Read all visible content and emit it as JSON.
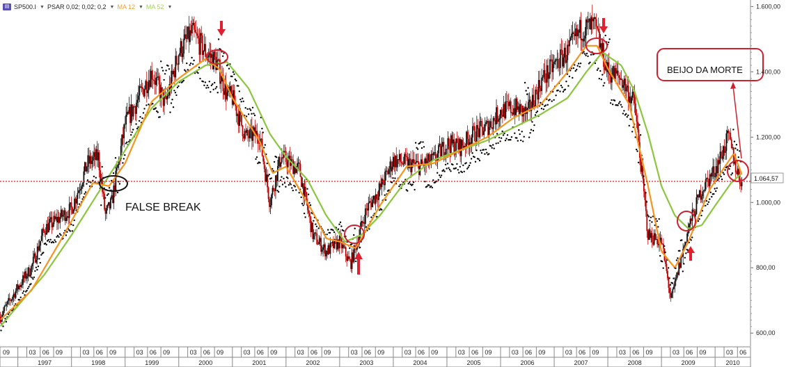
{
  "legend": {
    "symbol": "SP500.I",
    "psar": "PSAR 0,02; 0,02; 0,2",
    "ma12": "MA 12",
    "ma52": "MA 52",
    "colors": {
      "ma12": "#f7941d",
      "ma52": "#8cc63f",
      "psar": "#000000",
      "up": "#111111",
      "down": "#c00000"
    }
  },
  "annotations": {
    "false_break": "FALSE BREAK",
    "beijo": "BEIJO DA MORTE",
    "last_price": "1.064,57"
  },
  "chart_data": {
    "type": "line",
    "title": "",
    "xlabel": "",
    "ylabel": "",
    "ylim": [
      560,
      1620
    ],
    "xlim": [
      1996.667,
      2010.66
    ],
    "y_ticks": [
      "600,00",
      "800,00",
      "1.000,00",
      "1.200,00",
      "1.400,00",
      "1.600,00"
    ],
    "y_tick_values": [
      600,
      800,
      1000,
      1200,
      1400,
      1600
    ],
    "years": [
      "1997",
      "1998",
      "1999",
      "2000",
      "2001",
      "2002",
      "2003",
      "2004",
      "2005",
      "2006",
      "2007",
      "2008",
      "2009",
      "2010"
    ],
    "month_ticks": [
      "09",
      "03",
      "06",
      "09"
    ],
    "reference_line": 1064.57,
    "grid": false,
    "legend_position": "top-left",
    "price": {
      "x": [
        1996.67,
        1997.0,
        1997.25,
        1997.5,
        1997.75,
        1998.0,
        1998.3,
        1998.5,
        1998.63,
        1998.75,
        1999.0,
        1999.25,
        1999.5,
        1999.75,
        2000.0,
        2000.25,
        2000.5,
        2000.7,
        2000.9,
        2001.0,
        2001.25,
        2001.5,
        2001.7,
        2001.9,
        2002.0,
        2002.25,
        2002.5,
        2002.75,
        2003.0,
        2003.2,
        2003.5,
        2003.75,
        2004.0,
        2004.25,
        2004.5,
        2004.75,
        2005.0,
        2005.25,
        2005.5,
        2005.75,
        2006.0,
        2006.25,
        2006.5,
        2006.75,
        2007.0,
        2007.25,
        2007.5,
        2007.75,
        2008.0,
        2008.25,
        2008.5,
        2008.75,
        2009.0,
        2009.18,
        2009.5,
        2009.75,
        2010.0,
        2010.25,
        2010.4,
        2010.5
      ],
      "y": [
        650,
        740,
        800,
        920,
        950,
        980,
        1120,
        1140,
        960,
        1000,
        1240,
        1320,
        1400,
        1300,
        1460,
        1520,
        1460,
        1430,
        1330,
        1320,
        1200,
        1210,
        1000,
        1140,
        1130,
        1100,
        900,
        850,
        880,
        810,
        980,
        1040,
        1130,
        1120,
        1110,
        1130,
        1180,
        1170,
        1210,
        1230,
        1280,
        1290,
        1270,
        1370,
        1420,
        1460,
        1530,
        1540,
        1400,
        1380,
        1300,
        900,
        880,
        700,
        920,
        1040,
        1100,
        1200,
        1100,
        1060
      ]
    },
    "series": [
      {
        "name": "MA 12",
        "x": [
          1996.67,
          1997.25,
          1997.75,
          1998.4,
          1998.7,
          1999.0,
          1999.5,
          2000.0,
          2000.5,
          2000.75,
          2001.0,
          2001.5,
          2001.75,
          2002.0,
          2002.5,
          2002.75,
          2003.0,
          2003.3,
          2003.75,
          2004.25,
          2004.75,
          2005.25,
          2005.75,
          2006.25,
          2006.75,
          2007.25,
          2007.6,
          2007.8,
          2008.0,
          2008.4,
          2008.75,
          2009.0,
          2009.25,
          2009.5,
          2009.9,
          2010.1,
          2010.35,
          2010.5
        ],
        "y": [
          640,
          730,
          870,
          1060,
          1050,
          1120,
          1310,
          1380,
          1440,
          1410,
          1320,
          1190,
          1090,
          1110,
          970,
          890,
          880,
          860,
          990,
          1110,
          1120,
          1160,
          1200,
          1260,
          1300,
          1400,
          1480,
          1480,
          1410,
          1300,
          1050,
          850,
          800,
          880,
          1040,
          1090,
          1150,
          1085
        ]
      },
      {
        "name": "MA 52",
        "x": [
          1996.67,
          1997.5,
          1998.0,
          1998.5,
          1999.0,
          1999.5,
          2000.0,
          2000.5,
          2000.9,
          2001.3,
          2001.7,
          2002.0,
          2002.4,
          2002.75,
          2003.1,
          2003.4,
          2003.75,
          2004.25,
          2004.75,
          2005.25,
          2005.75,
          2006.25,
          2006.75,
          2007.25,
          2007.6,
          2007.9,
          2008.25,
          2008.5,
          2008.75,
          2009.0,
          2009.25,
          2009.5,
          2009.75,
          2010.0,
          2010.3,
          2010.5
        ],
        "y": [
          620,
          780,
          900,
          1030,
          1160,
          1290,
          1370,
          1420,
          1430,
          1350,
          1210,
          1140,
          1070,
          960,
          880,
          900,
          960,
          1070,
          1130,
          1160,
          1190,
          1230,
          1270,
          1320,
          1400,
          1460,
          1420,
          1340,
          1210,
          1050,
          960,
          920,
          930,
          990,
          1060,
          1090
        ]
      }
    ]
  }
}
